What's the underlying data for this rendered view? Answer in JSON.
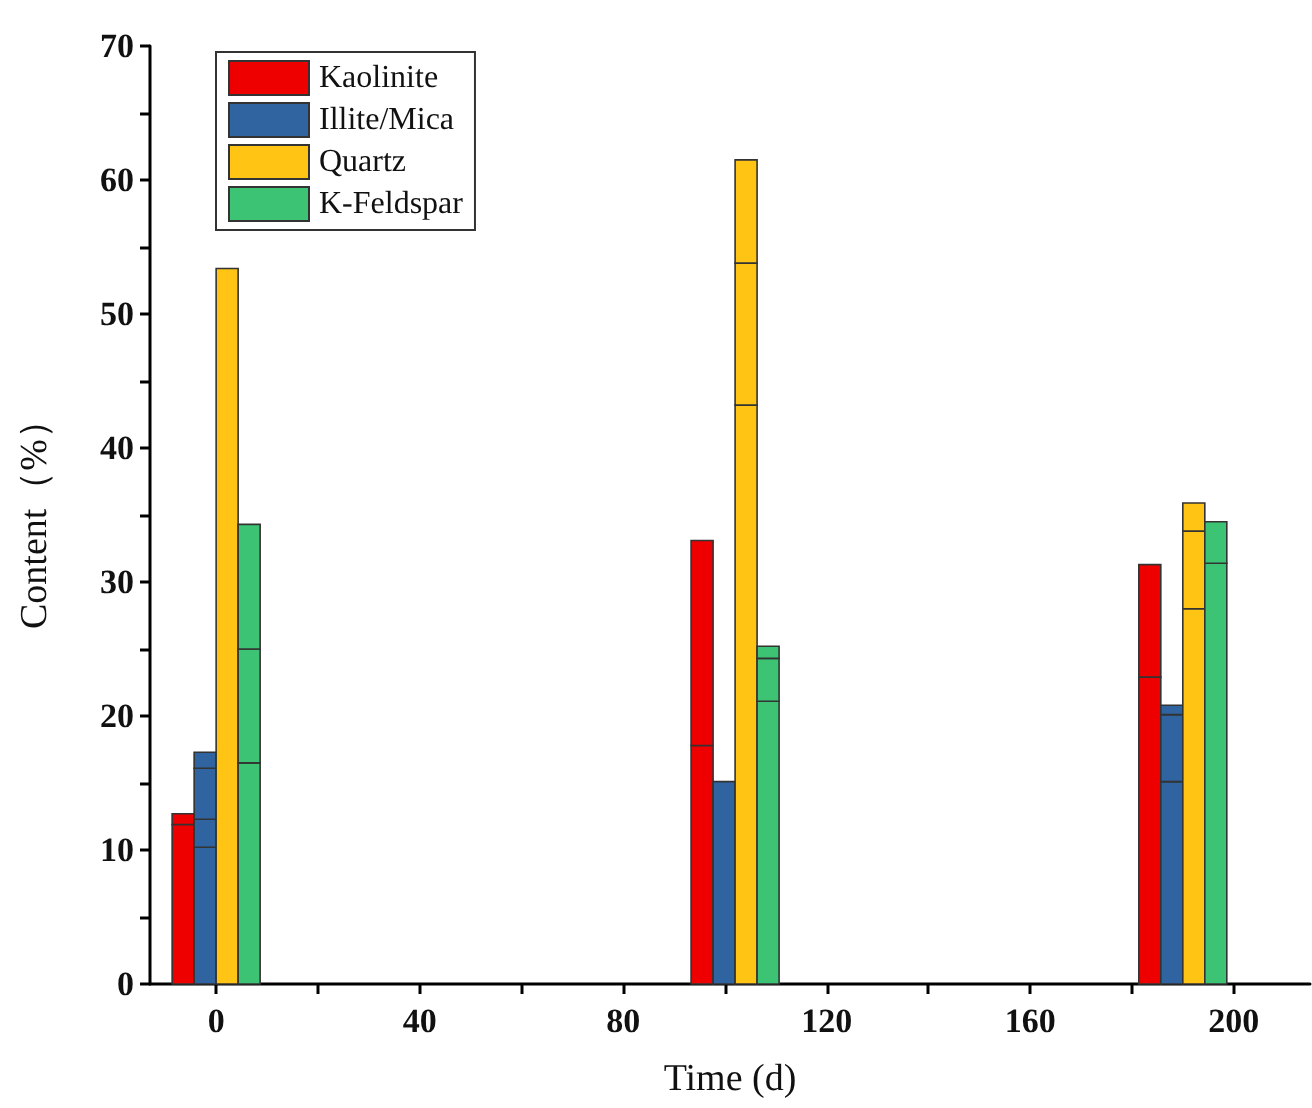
{
  "chart_data": {
    "type": "bar",
    "xlabel": "Time (d)",
    "ylabel": "Content（%）",
    "x": [
      0,
      102,
      190
    ],
    "series": [
      {
        "name": "Kaolinite",
        "color": "#ee0000",
        "base": [
          0,
          0,
          0
        ],
        "values": [
          11.9,
          17.8,
          22.9
        ]
      },
      {
        "color": "#ee0000",
        "base": [
          11.9,
          17.8,
          22.9
        ],
        "values": [
          0.8,
          15.3,
          8.4
        ]
      },
      {
        "name": "Illite/Mica",
        "color": "#2f64a0",
        "base": [
          0,
          0,
          0
        ],
        "values": [
          10.2,
          15.1,
          15.1
        ]
      },
      {
        "color": "#2f64a0",
        "base": [
          10.2,
          null,
          15.1
        ],
        "values": [
          2.1,
          null,
          5.0
        ]
      },
      {
        "color": "#2f64a0",
        "base": [
          12.3,
          null,
          20.1
        ],
        "values": [
          3.8,
          null,
          0.7
        ]
      },
      {
        "color": "#2f64a0",
        "base": [
          16.1,
          null,
          null
        ],
        "values": [
          1.2,
          null,
          null
        ]
      },
      {
        "name": "Quartz",
        "color": "#ffc414",
        "base": [
          0,
          0,
          0
        ],
        "values": [
          53.4,
          43.2,
          28.0
        ]
      },
      {
        "color": "#ffc414",
        "base": [
          null,
          43.2,
          28.0
        ],
        "values": [
          null,
          10.6,
          5.8
        ]
      },
      {
        "color": "#ffc414",
        "base": [
          null,
          53.8,
          33.8
        ],
        "values": [
          null,
          7.7,
          2.1
        ]
      },
      {
        "name": "K-Feldspar",
        "color": "#3cc474",
        "base": [
          0,
          0,
          0
        ],
        "values": [
          16.5,
          21.1,
          31.4
        ]
      },
      {
        "color": "#3cc474",
        "base": [
          16.5,
          21.1,
          31.4
        ],
        "values": [
          8.5,
          3.2,
          3.1
        ]
      },
      {
        "color": "#3cc474",
        "base": [
          25.0,
          24.3,
          null
        ],
        "values": [
          9.3,
          0.9,
          null
        ]
      }
    ],
    "xlim": [
      -13,
      215
    ],
    "xticks": [
      0,
      {
        "value": 20,
        "label": null
      },
      40,
      {
        "value": 60,
        "label": null
      },
      80,
      {
        "value": 100,
        "label": null
      },
      120,
      {
        "value": 140,
        "label": null
      },
      160,
      {
        "value": 180,
        "label": null
      },
      200
    ],
    "ylim": [
      0,
      70
    ],
    "yticks": [
      0,
      {
        "value": 5,
        "label": null
      },
      10,
      {
        "value": 15,
        "label": null
      },
      20,
      {
        "value": 25,
        "label": null
      },
      30,
      {
        "value": 35,
        "label": null
      },
      40,
      {
        "value": 45,
        "label": null
      },
      50,
      {
        "value": 55,
        "label": null
      },
      60,
      {
        "value": 65,
        "label": null
      },
      70
    ],
    "legend": "top left",
    "grid": false
  }
}
